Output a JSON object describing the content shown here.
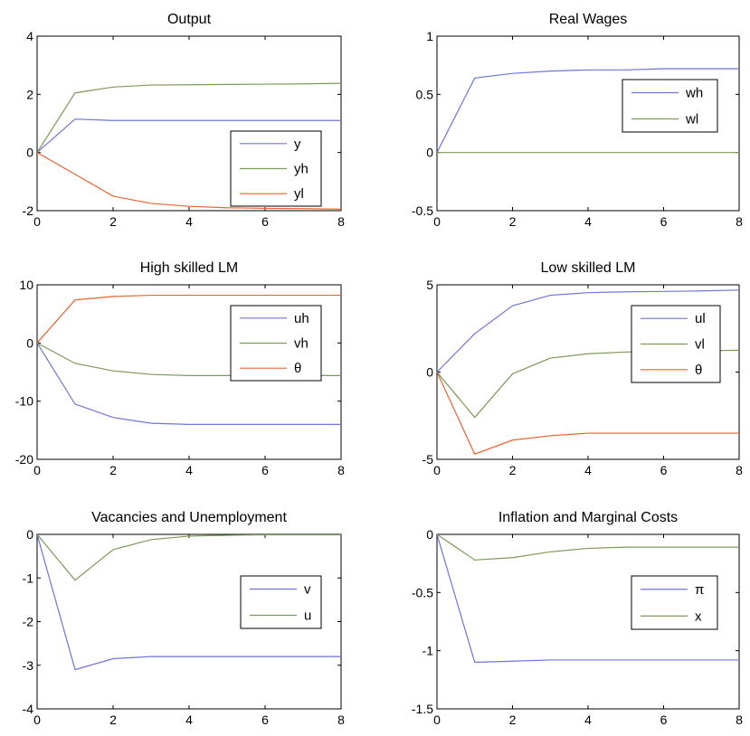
{
  "colors": {
    "blue": "#6f74d8",
    "green": "#7c9a58",
    "red": "#e8632d"
  },
  "chart_data": [
    {
      "type": "line",
      "title": "Output",
      "x": [
        0,
        1,
        2,
        3,
        4,
        5,
        6,
        7,
        8
      ],
      "xlim": [
        0,
        8
      ],
      "ylim": [
        -2,
        4
      ],
      "xticks": [
        0,
        2,
        4,
        6,
        8
      ],
      "yticks": [
        -2,
        0,
        2,
        4
      ],
      "legend": "lower-right",
      "series": [
        {
          "name": "y",
          "color": "blue",
          "values": [
            0,
            1.15,
            1.1,
            1.1,
            1.1,
            1.1,
            1.1,
            1.1,
            1.1
          ]
        },
        {
          "name": "yh",
          "color": "green",
          "values": [
            0,
            2.05,
            2.25,
            2.32,
            2.33,
            2.34,
            2.35,
            2.36,
            2.38
          ]
        },
        {
          "name": "yl",
          "color": "red",
          "values": [
            0,
            -0.75,
            -1.5,
            -1.75,
            -1.85,
            -1.9,
            -1.92,
            -1.93,
            -1.95
          ]
        }
      ]
    },
    {
      "type": "line",
      "title": "Real Wages",
      "x": [
        0,
        1,
        2,
        3,
        4,
        5,
        6,
        7,
        8
      ],
      "xlim": [
        0,
        8
      ],
      "ylim": [
        -0.5,
        1
      ],
      "xticks": [
        0,
        2,
        4,
        6,
        8
      ],
      "yticks": [
        -0.5,
        0,
        0.5,
        1
      ],
      "legend": "upper-right",
      "series": [
        {
          "name": "wh",
          "color": "blue",
          "values": [
            0,
            0.64,
            0.68,
            0.7,
            0.71,
            0.71,
            0.72,
            0.72,
            0.72
          ]
        },
        {
          "name": "wl",
          "color": "green",
          "values": [
            0,
            0,
            0,
            0,
            0,
            0,
            0,
            0,
            0
          ]
        }
      ]
    },
    {
      "type": "line",
      "title": "High skilled LM",
      "x": [
        0,
        1,
        2,
        3,
        4,
        5,
        6,
        7,
        8
      ],
      "xlim": [
        0,
        8
      ],
      "ylim": [
        -20,
        10
      ],
      "xticks": [
        0,
        2,
        4,
        6,
        8
      ],
      "yticks": [
        -20,
        -10,
        0,
        10
      ],
      "legend": "right",
      "series": [
        {
          "name": "uh",
          "color": "blue",
          "values": [
            0,
            -10.5,
            -12.8,
            -13.8,
            -14,
            -14,
            -14,
            -14,
            -14
          ]
        },
        {
          "name": "vh",
          "color": "green",
          "values": [
            0,
            -3.5,
            -4.8,
            -5.4,
            -5.6,
            -5.6,
            -5.6,
            -5.6,
            -5.6
          ]
        },
        {
          "name": "θ",
          "color": "red",
          "values": [
            0,
            7.4,
            8,
            8.2,
            8.2,
            8.2,
            8.2,
            8.2,
            8.2
          ]
        }
      ]
    },
    {
      "type": "line",
      "title": "Low skilled LM",
      "x": [
        0,
        1,
        2,
        3,
        4,
        5,
        6,
        7,
        8
      ],
      "xlim": [
        0,
        8
      ],
      "ylim": [
        -5,
        5
      ],
      "xticks": [
        0,
        2,
        4,
        6,
        8
      ],
      "yticks": [
        -5,
        0,
        5
      ],
      "legend": "right",
      "series": [
        {
          "name": "ul",
          "color": "blue",
          "values": [
            0,
            2.2,
            3.8,
            4.4,
            4.55,
            4.6,
            4.62,
            4.65,
            4.7
          ]
        },
        {
          "name": "vl",
          "color": "green",
          "values": [
            0,
            -2.6,
            -0.1,
            0.8,
            1.05,
            1.15,
            1.2,
            1.22,
            1.25
          ]
        },
        {
          "name": "θ",
          "color": "red",
          "values": [
            0,
            -4.7,
            -3.9,
            -3.65,
            -3.5,
            -3.5,
            -3.5,
            -3.5,
            -3.5
          ]
        }
      ]
    },
    {
      "type": "line",
      "title": "Vacancies and Unemployment",
      "x": [
        0,
        1,
        2,
        3,
        4,
        5,
        6,
        7,
        8
      ],
      "xlim": [
        0,
        8
      ],
      "ylim": [
        -4,
        0
      ],
      "xticks": [
        0,
        2,
        4,
        6,
        8
      ],
      "yticks": [
        -4,
        -3,
        -2,
        -1,
        0
      ],
      "legend": "right",
      "series": [
        {
          "name": "v",
          "color": "blue",
          "values": [
            0,
            -3.1,
            -2.85,
            -2.8,
            -2.8,
            -2.8,
            -2.8,
            -2.8,
            -2.8
          ]
        },
        {
          "name": "u",
          "color": "green",
          "values": [
            0,
            -1.05,
            -0.35,
            -0.12,
            -0.04,
            -0.02,
            -0.01,
            -0.01,
            -0.01
          ]
        }
      ]
    },
    {
      "type": "line",
      "title": "Inflation and Marginal Costs",
      "x": [
        0,
        1,
        2,
        3,
        4,
        5,
        6,
        7,
        8
      ],
      "xlim": [
        0,
        8
      ],
      "ylim": [
        -1.5,
        0
      ],
      "xticks": [
        0,
        2,
        4,
        6,
        8
      ],
      "yticks": [
        -1.5,
        -1,
        -0.5,
        0
      ],
      "legend": "right",
      "series": [
        {
          "name": "π",
          "color": "blue",
          "values": [
            0,
            -1.1,
            -1.09,
            -1.08,
            -1.08,
            -1.08,
            -1.08,
            -1.08,
            -1.08
          ]
        },
        {
          "name": "x",
          "color": "green",
          "values": [
            0,
            -0.22,
            -0.2,
            -0.15,
            -0.12,
            -0.11,
            -0.11,
            -0.11,
            -0.11
          ]
        }
      ]
    }
  ]
}
